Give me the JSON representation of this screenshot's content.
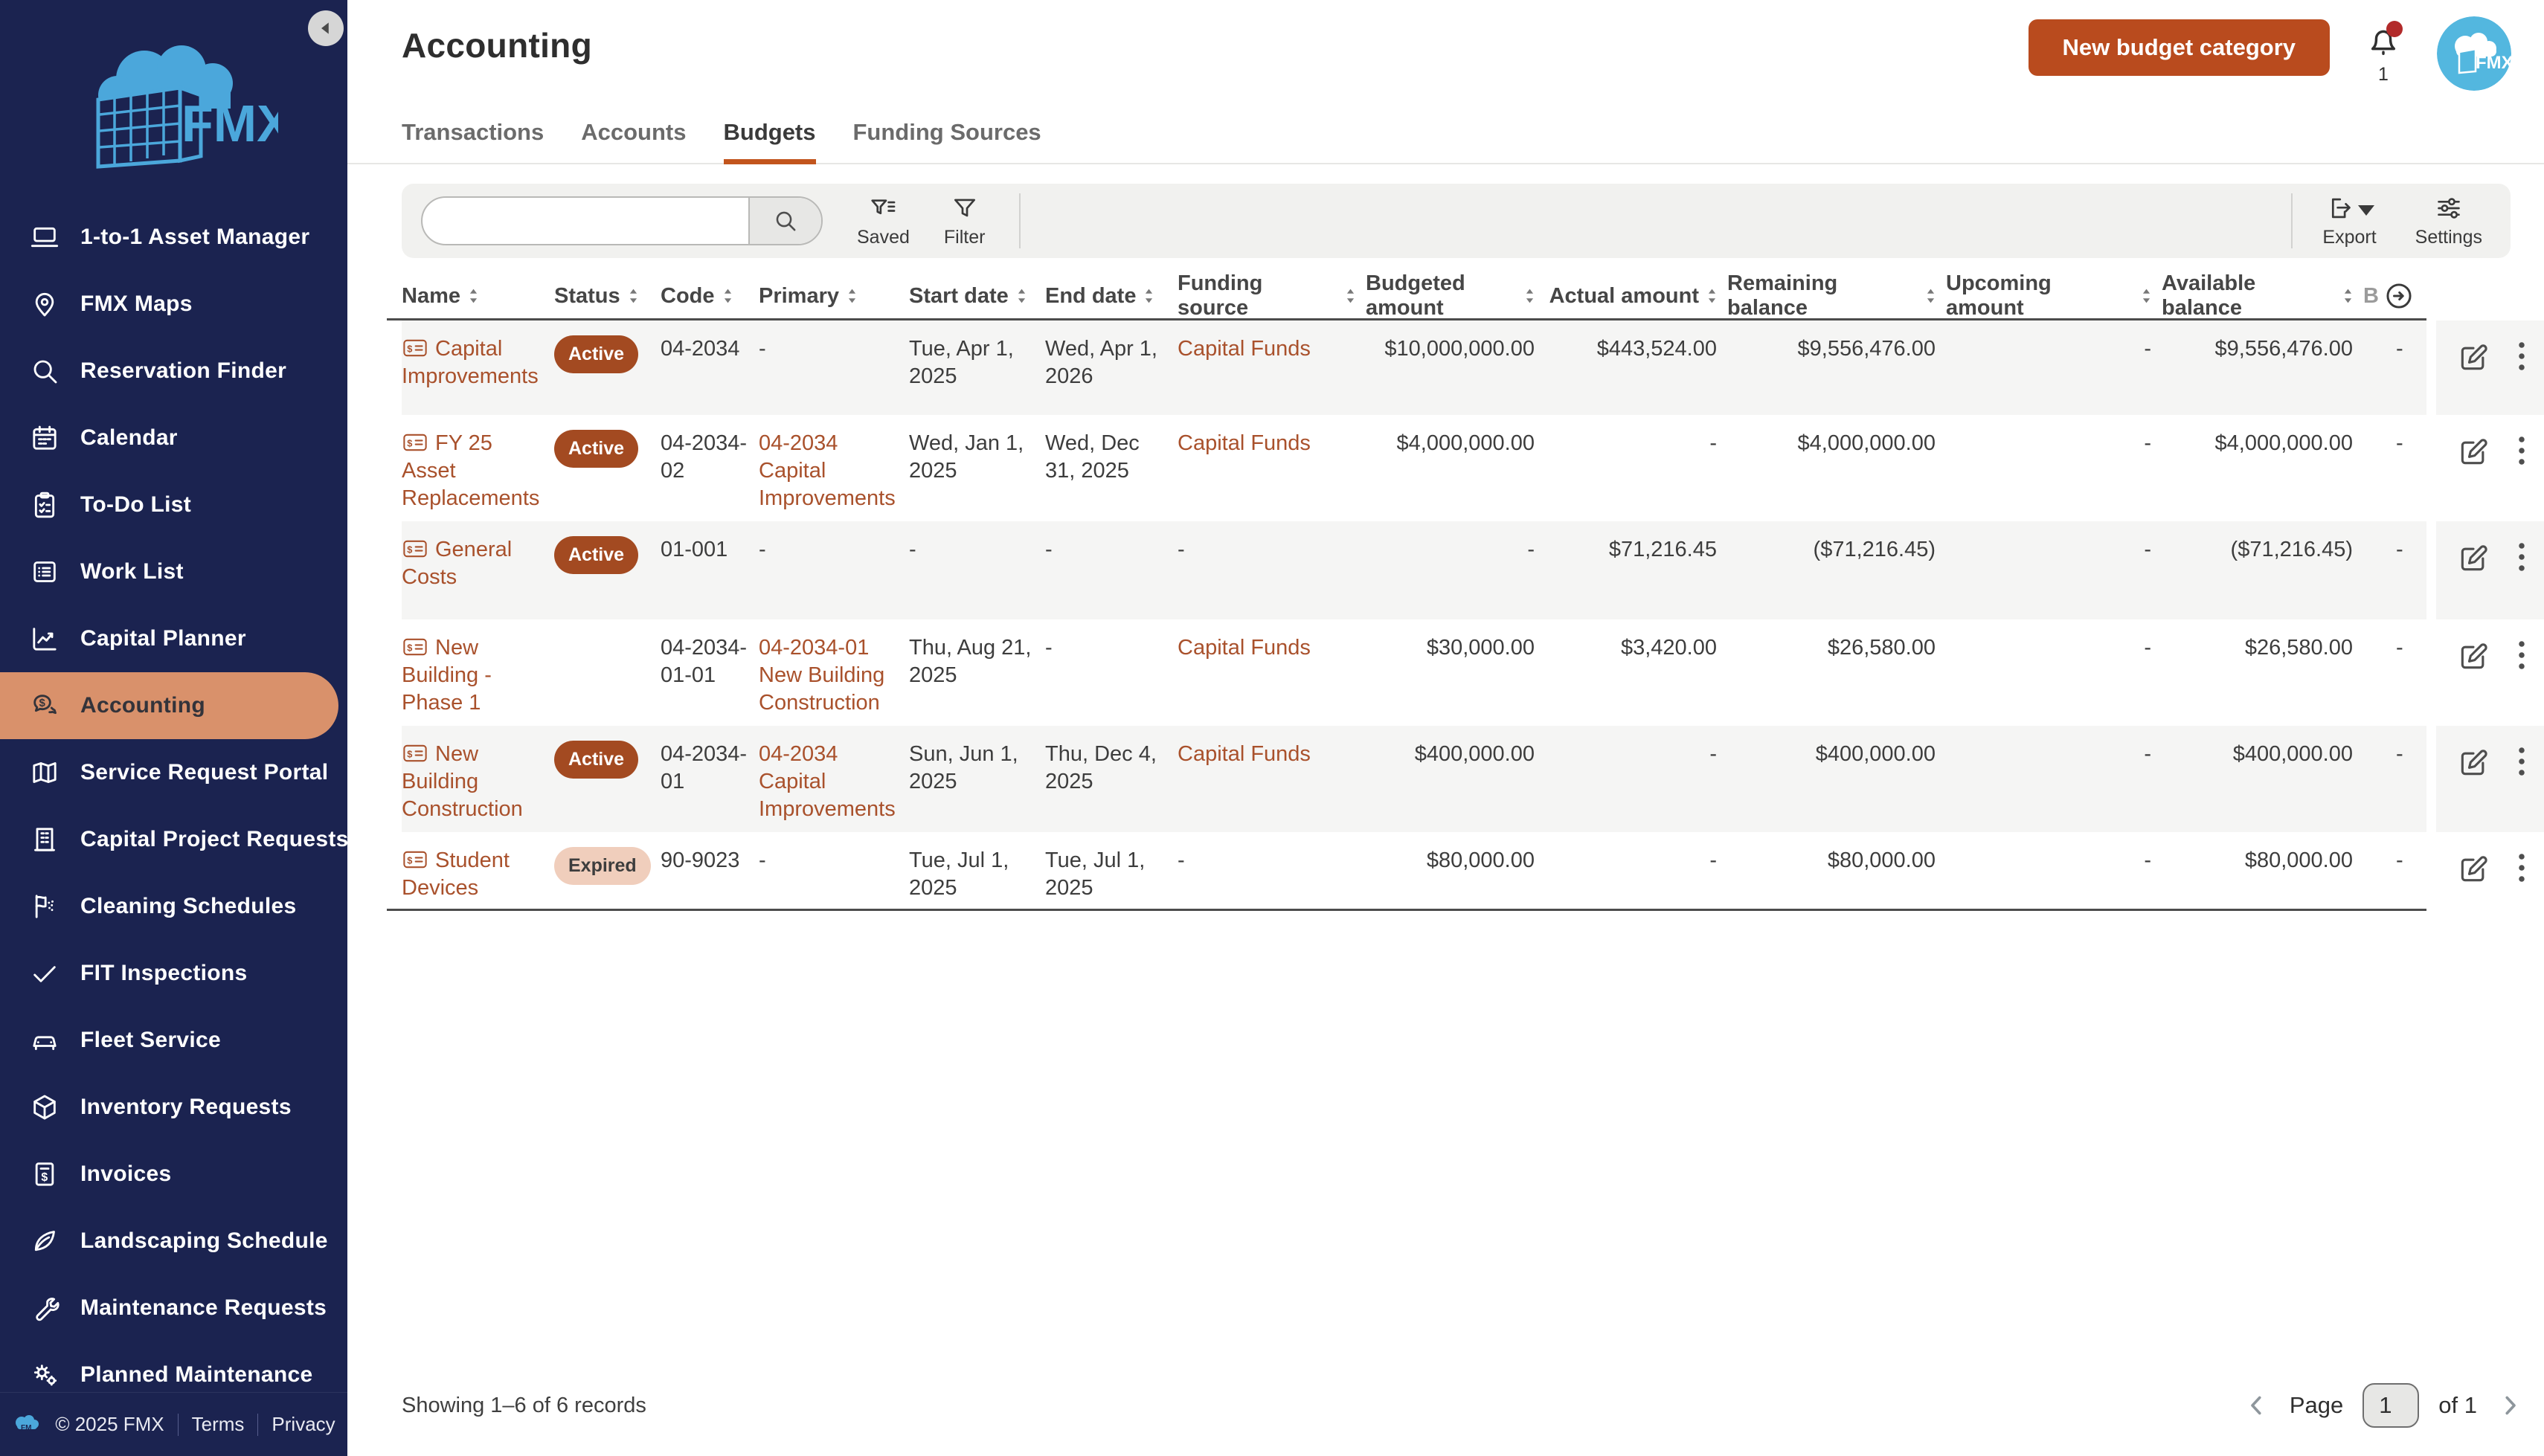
{
  "colors": {
    "sidebar_bg": "#1B2350",
    "sidebar_active": "#D9916B",
    "accent": "#B94B1E",
    "badge_active": "#A34A21",
    "badge_expired_bg": "#F0CEBC",
    "link": "#A9512C",
    "avatar_blue": "#53B7DF",
    "logo_blue": "#4BA7DB"
  },
  "sidebar": {
    "items": [
      {
        "label": "1-to-1 Asset Manager",
        "icon": "laptop-icon"
      },
      {
        "label": "FMX Maps",
        "icon": "map-pin-icon"
      },
      {
        "label": "Reservation Finder",
        "icon": "search-icon"
      },
      {
        "label": "Calendar",
        "icon": "calendar-icon"
      },
      {
        "label": "To-Do List",
        "icon": "clipboard-icon"
      },
      {
        "label": "Work List",
        "icon": "list-icon"
      },
      {
        "label": "Capital Planner",
        "icon": "chart-icon"
      },
      {
        "label": "Accounting",
        "icon": "accounting-icon",
        "active": true
      },
      {
        "label": "Service Request Portal",
        "icon": "map-icon"
      },
      {
        "label": "Capital Project Requests",
        "icon": "building-icon"
      },
      {
        "label": "Cleaning Schedules",
        "icon": "cleaning-icon"
      },
      {
        "label": "FIT Inspections",
        "icon": "check-icon"
      },
      {
        "label": "Fleet Service",
        "icon": "car-icon"
      },
      {
        "label": "Inventory Requests",
        "icon": "box-icon"
      },
      {
        "label": "Invoices",
        "icon": "invoice-icon"
      },
      {
        "label": "Landscaping Schedule",
        "icon": "leaf-icon"
      },
      {
        "label": "Maintenance Requests",
        "icon": "wrench-icon"
      },
      {
        "label": "Planned Maintenance",
        "icon": "gears-icon"
      }
    ],
    "footer": {
      "copyright": "© 2025 FMX",
      "terms": "Terms",
      "privacy": "Privacy"
    }
  },
  "topbar": {
    "title": "Accounting",
    "new_button": "New budget category",
    "notification_count": "1",
    "avatar_label": "FMX"
  },
  "tabs": [
    {
      "label": "Transactions"
    },
    {
      "label": "Accounts"
    },
    {
      "label": "Budgets",
      "active": true
    },
    {
      "label": "Funding Sources"
    }
  ],
  "toolbar": {
    "search_value": "",
    "saved_label": "Saved",
    "filter_label": "Filter",
    "export_label": "Export",
    "settings_label": "Settings"
  },
  "table": {
    "columns": [
      {
        "key": "name",
        "label": "Name"
      },
      {
        "key": "status",
        "label": "Status"
      },
      {
        "key": "code",
        "label": "Code"
      },
      {
        "key": "primary",
        "label": "Primary"
      },
      {
        "key": "start",
        "label": "Start date"
      },
      {
        "key": "end",
        "label": "End date"
      },
      {
        "key": "funding",
        "label": "Funding source"
      },
      {
        "key": "budgeted",
        "label": "Budgeted amount"
      },
      {
        "key": "actual",
        "label": "Actual amount"
      },
      {
        "key": "remaining",
        "label": "Remaining balance"
      },
      {
        "key": "upcoming",
        "label": "Upcoming amount"
      },
      {
        "key": "available",
        "label": "Available balance"
      }
    ],
    "overflow_column_label": "B",
    "rows": [
      {
        "name": "Capital Improvements",
        "status": "Active",
        "code": "04-2034",
        "primary": "-",
        "start": "Tue, Apr 1, 2025",
        "end": "Wed, Apr 1, 2026",
        "funding": "Capital Funds",
        "budgeted": "$10,000,000.00",
        "actual": "$443,524.00",
        "remaining": "$9,556,476.00",
        "upcoming": "-",
        "available": "$9,556,476.00",
        "extra": "-"
      },
      {
        "name": "FY 25 Asset Replacements",
        "status": "Active",
        "code": "04-2034-02",
        "primary": "04-2034 Capital Improvements",
        "start": "Wed, Jan 1, 2025",
        "end": "Wed, Dec 31, 2025",
        "funding": "Capital Funds",
        "budgeted": "$4,000,000.00",
        "actual": "-",
        "remaining": "$4,000,000.00",
        "upcoming": "-",
        "available": "$4,000,000.00",
        "extra": "-"
      },
      {
        "name": "General Costs",
        "status": "Active",
        "code": "01-001",
        "primary": "-",
        "start": "-",
        "end": "-",
        "funding": "-",
        "budgeted": "-",
        "actual": "$71,216.45",
        "remaining": "($71,216.45)",
        "upcoming": "-",
        "available": "($71,216.45)",
        "extra": "-"
      },
      {
        "name": "New Building - Phase 1",
        "status": "",
        "code": "04-2034-01-01",
        "primary": "04-2034-01 New Building Construction",
        "start": "Thu, Aug 21, 2025",
        "end": "-",
        "funding": "Capital Funds",
        "budgeted": "$30,000.00",
        "actual": "$3,420.00",
        "remaining": "$26,580.00",
        "upcoming": "-",
        "available": "$26,580.00",
        "extra": "-"
      },
      {
        "name": "New Building Construction",
        "status": "Active",
        "code": "04-2034-01",
        "primary": "04-2034 Capital Improvements",
        "start": "Sun, Jun 1, 2025",
        "end": "Thu, Dec 4, 2025",
        "funding": "Capital Funds",
        "budgeted": "$400,000.00",
        "actual": "-",
        "remaining": "$400,000.00",
        "upcoming": "-",
        "available": "$400,000.00",
        "extra": "-"
      },
      {
        "name": "Student Devices",
        "status": "Expired",
        "code": "90-9023",
        "primary": "-",
        "start": "Tue, Jul 1, 2025",
        "end": "Tue, Jul 1, 2025",
        "funding": "-",
        "budgeted": "$80,000.00",
        "actual": "-",
        "remaining": "$80,000.00",
        "upcoming": "-",
        "available": "$80,000.00",
        "extra": "-"
      }
    ]
  },
  "status_bar": {
    "showing": "Showing 1–6 of 6 records",
    "page_label": "Page",
    "page_value": "1",
    "of_label": "of 1"
  }
}
